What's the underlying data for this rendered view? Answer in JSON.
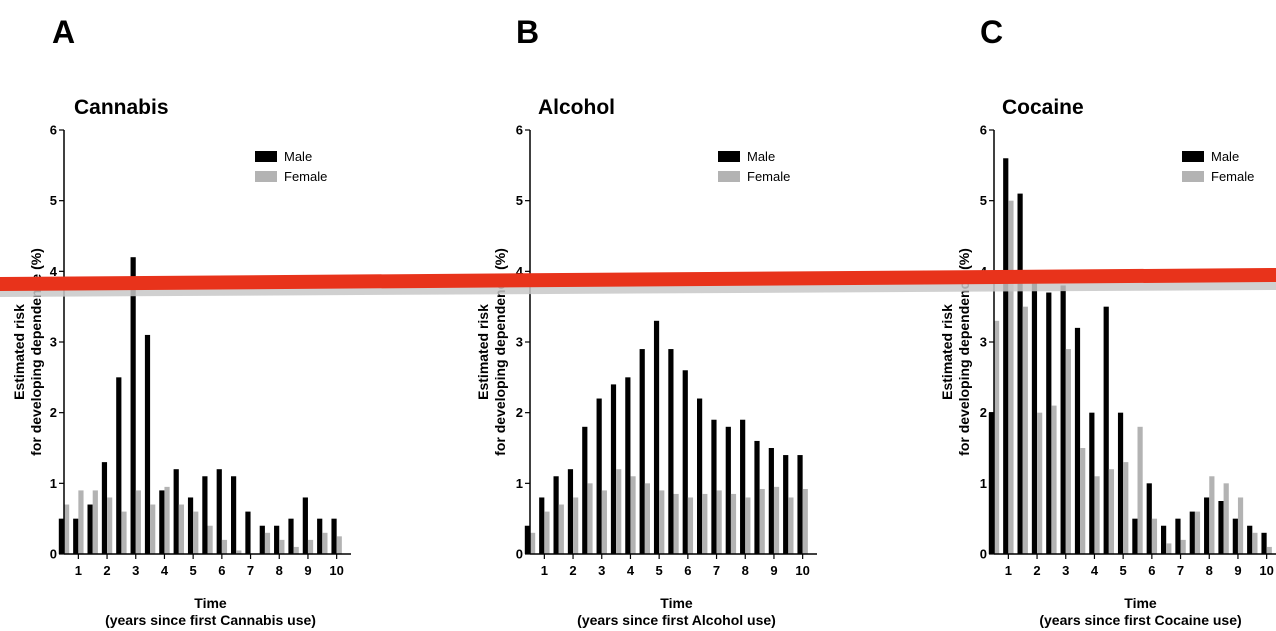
{
  "colors": {
    "male": "#000000",
    "female": "#b3b3b3",
    "overlay_line": "#e8331b",
    "overlay_shadow": "#c8c8c8"
  },
  "chart_data": [
    {
      "panel": "A",
      "type": "bar",
      "title": "Cannabis",
      "ylabel_lines": [
        "Estimated risk",
        "for developing dependence (%)"
      ],
      "xlabel_lines": [
        "Time",
        "(years since first Cannabis use)"
      ],
      "ylim": [
        0,
        6
      ],
      "yticks": [
        0,
        1,
        2,
        3,
        4,
        5,
        6
      ],
      "xticks": [
        1,
        2,
        3,
        4,
        5,
        6,
        7,
        8,
        9,
        10
      ],
      "xlim": [
        0.5,
        10.5
      ],
      "legend_position": "top-right",
      "x": [
        0.5,
        1.0,
        1.5,
        2.0,
        2.5,
        3.0,
        3.5,
        4.0,
        4.5,
        5.0,
        5.5,
        6.0,
        6.5,
        7.0,
        7.5,
        8.0,
        8.5,
        9.0,
        9.5,
        10.0
      ],
      "series": [
        {
          "name": "Male",
          "values": [
            0.5,
            0.5,
            0.7,
            1.3,
            2.5,
            4.2,
            3.1,
            0.9,
            1.2,
            0.8,
            1.1,
            1.2,
            1.1,
            0.6,
            0.4,
            0.4,
            0.5,
            0.8,
            0.5,
            0.5
          ]
        },
        {
          "name": "Female",
          "values": [
            0.7,
            0.9,
            0.9,
            0.8,
            0.6,
            0.9,
            0.7,
            0.95,
            0.7,
            0.6,
            0.4,
            0.2,
            0.05,
            0.0,
            0.3,
            0.2,
            0.1,
            0.2,
            0.3,
            0.25
          ]
        }
      ]
    },
    {
      "panel": "B",
      "type": "bar",
      "title": "Alcohol",
      "ylabel_lines": [
        "Estimated risk",
        "for developing dependence (%)"
      ],
      "xlabel_lines": [
        "Time",
        "(years since first Alcohol use)"
      ],
      "ylim": [
        0,
        6
      ],
      "yticks": [
        0,
        1,
        2,
        3,
        4,
        5,
        6
      ],
      "xticks": [
        1,
        2,
        3,
        4,
        5,
        6,
        7,
        8,
        9,
        10
      ],
      "xlim": [
        0.5,
        10.5
      ],
      "legend_position": "top-right",
      "x": [
        0.5,
        1.0,
        1.5,
        2.0,
        2.5,
        3.0,
        3.5,
        4.0,
        4.5,
        5.0,
        5.5,
        6.0,
        6.5,
        7.0,
        7.5,
        8.0,
        8.5,
        9.0,
        9.5,
        10.0
      ],
      "series": [
        {
          "name": "Male",
          "values": [
            0.4,
            0.8,
            1.1,
            1.2,
            1.8,
            2.2,
            2.4,
            2.5,
            2.9,
            3.3,
            2.9,
            2.6,
            2.2,
            1.9,
            1.8,
            1.9,
            1.6,
            1.5,
            1.4,
            1.4
          ]
        },
        {
          "name": "Female",
          "values": [
            0.3,
            0.6,
            0.7,
            0.8,
            1.0,
            0.9,
            1.2,
            1.1,
            1.0,
            0.9,
            0.85,
            0.8,
            0.85,
            0.9,
            0.85,
            0.8,
            0.92,
            0.95,
            0.8,
            0.92
          ]
        }
      ]
    },
    {
      "panel": "C",
      "type": "bar",
      "title": "Cocaine",
      "ylabel_lines": [
        "Estimated risk",
        "for developing dependence (%)"
      ],
      "xlabel_lines": [
        "Time",
        "(years since first Cocaine use)"
      ],
      "ylim": [
        0,
        6
      ],
      "yticks": [
        0,
        1,
        2,
        3,
        4,
        5,
        6
      ],
      "xticks": [
        1,
        2,
        3,
        4,
        5,
        6,
        7,
        8,
        9,
        10
      ],
      "xlim": [
        0.5,
        10.5
      ],
      "legend_position": "top-right",
      "x": [
        0.5,
        1.0,
        1.5,
        2.0,
        2.5,
        3.0,
        3.5,
        4.0,
        4.5,
        5.0,
        5.5,
        6.0,
        6.5,
        7.0,
        7.5,
        8.0,
        8.5,
        9.0,
        9.5,
        10.0
      ],
      "series": [
        {
          "name": "Male",
          "values": [
            2.0,
            5.6,
            5.1,
            4.0,
            3.7,
            3.8,
            3.2,
            2.0,
            3.5,
            2.0,
            0.5,
            1.0,
            0.4,
            0.5,
            0.6,
            0.8,
            0.75,
            0.5,
            0.4,
            0.3
          ]
        },
        {
          "name": "Female",
          "values": [
            3.3,
            5.0,
            3.5,
            2.0,
            2.1,
            2.9,
            1.5,
            1.1,
            1.2,
            1.3,
            1.8,
            0.5,
            0.15,
            0.2,
            0.6,
            1.1,
            1.0,
            0.8,
            0.3,
            0.1
          ]
        }
      ]
    }
  ]
}
